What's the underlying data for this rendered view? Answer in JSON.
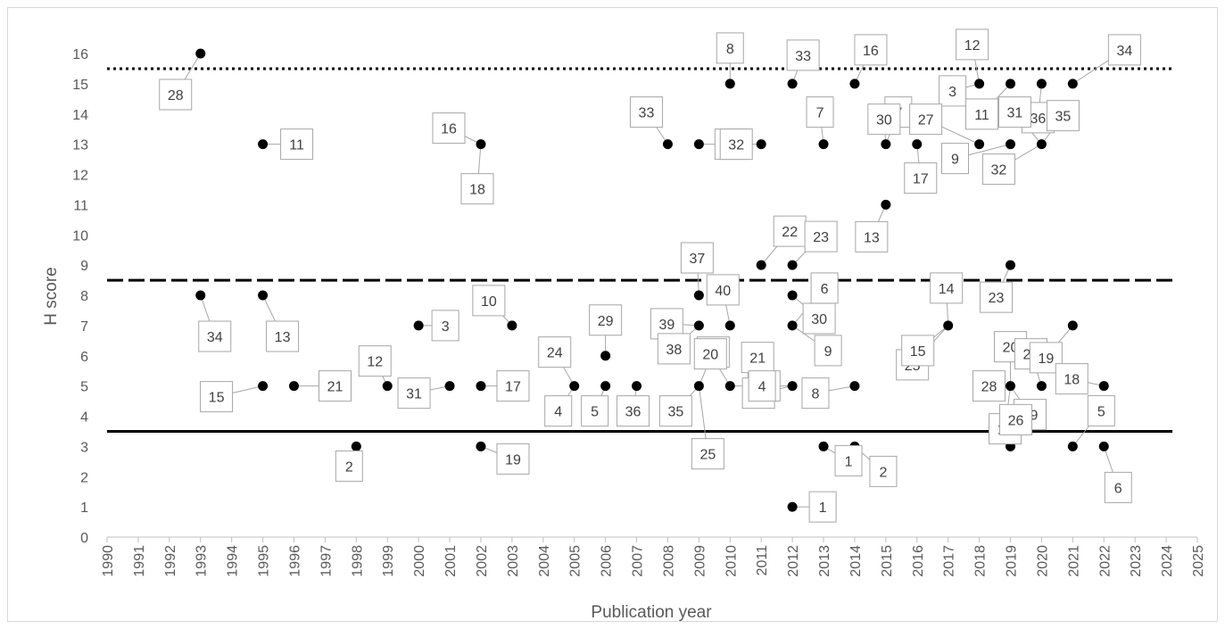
{
  "chart_data": {
    "type": "scatter",
    "title": "",
    "xlabel": "Publication year",
    "ylabel": "H score",
    "xlim": [
      1990,
      2025
    ],
    "ylim": [
      0,
      16
    ],
    "x_ticks": [
      "1990",
      "1991",
      "1992",
      "1993",
      "1994",
      "1995",
      "1996",
      "1997",
      "1998",
      "1999",
      "2000",
      "2001",
      "2002",
      "2003",
      "2004",
      "2005",
      "2006",
      "2007",
      "2008",
      "2009",
      "2010",
      "2011",
      "2012",
      "2013",
      "2014",
      "2015",
      "2016",
      "2017",
      "2018",
      "2019",
      "2020",
      "2021",
      "2022",
      "2023",
      "2024",
      "2025"
    ],
    "y_ticks": [
      "0",
      "1",
      "2",
      "3",
      "4",
      "5",
      "6",
      "7",
      "8",
      "9",
      "10",
      "11",
      "12",
      "13",
      "14",
      "15",
      "16"
    ],
    "grid": false,
    "legend": "none",
    "marker_color": "#000000",
    "reference_lines": [
      {
        "y": 15.5,
        "style": "dotted",
        "color": "#000000"
      },
      {
        "y": 8.5,
        "style": "dashed",
        "color": "#000000"
      },
      {
        "y": 3.5,
        "style": "solid",
        "color": "#000000"
      }
    ],
    "points": [
      {
        "x": 1993,
        "y": 16
      },
      {
        "x": 1993,
        "y": 8
      },
      {
        "x": 1995,
        "y": 13
      },
      {
        "x": 1995,
        "y": 8
      },
      {
        "x": 1995,
        "y": 5
      },
      {
        "x": 1996,
        "y": 5
      },
      {
        "x": 1998,
        "y": 3
      },
      {
        "x": 1999,
        "y": 5
      },
      {
        "x": 2000,
        "y": 7
      },
      {
        "x": 2001,
        "y": 5
      },
      {
        "x": 2002,
        "y": 13
      },
      {
        "x": 2002,
        "y": 5
      },
      {
        "x": 2002,
        "y": 3
      },
      {
        "x": 2003,
        "y": 7
      },
      {
        "x": 2005,
        "y": 5
      },
      {
        "x": 2006,
        "y": 6
      },
      {
        "x": 2006,
        "y": 5
      },
      {
        "x": 2007,
        "y": 5
      },
      {
        "x": 2008,
        "y": 13
      },
      {
        "x": 2009,
        "y": 13
      },
      {
        "x": 2009,
        "y": 8
      },
      {
        "x": 2009,
        "y": 7
      },
      {
        "x": 2009,
        "y": 5
      },
      {
        "x": 2010,
        "y": 15
      },
      {
        "x": 2010,
        "y": 7
      },
      {
        "x": 2010,
        "y": 5
      },
      {
        "x": 2011,
        "y": 13
      },
      {
        "x": 2011,
        "y": 9
      },
      {
        "x": 2011,
        "y": 5
      },
      {
        "x": 2012,
        "y": 15
      },
      {
        "x": 2012,
        "y": 9
      },
      {
        "x": 2012,
        "y": 8
      },
      {
        "x": 2012,
        "y": 7
      },
      {
        "x": 2012,
        "y": 5
      },
      {
        "x": 2012,
        "y": 1
      },
      {
        "x": 2013,
        "y": 13
      },
      {
        "x": 2013,
        "y": 3
      },
      {
        "x": 2014,
        "y": 15
      },
      {
        "x": 2014,
        "y": 5
      },
      {
        "x": 2014,
        "y": 3
      },
      {
        "x": 2015,
        "y": 13
      },
      {
        "x": 2015,
        "y": 11
      },
      {
        "x": 2016,
        "y": 13
      },
      {
        "x": 2017,
        "y": 7
      },
      {
        "x": 2018,
        "y": 15
      },
      {
        "x": 2018,
        "y": 13
      },
      {
        "x": 2019,
        "y": 15
      },
      {
        "x": 2019,
        "y": 13
      },
      {
        "x": 2019,
        "y": 9
      },
      {
        "x": 2019,
        "y": 5
      },
      {
        "x": 2019,
        "y": 3
      },
      {
        "x": 2020,
        "y": 15
      },
      {
        "x": 2020,
        "y": 13
      },
      {
        "x": 2020,
        "y": 5
      },
      {
        "x": 2021,
        "y": 15
      },
      {
        "x": 2021,
        "y": 7
      },
      {
        "x": 2021,
        "y": 3
      },
      {
        "x": 2022,
        "y": 5
      },
      {
        "x": 2022,
        "y": 3
      }
    ],
    "annotations": [
      {
        "text": "28",
        "x": 1993,
        "y": 16
      },
      {
        "text": "34",
        "x": 1993,
        "y": 8
      },
      {
        "text": "11",
        "x": 1995,
        "y": 13
      },
      {
        "text": "13",
        "x": 1995,
        "y": 8
      },
      {
        "text": "15",
        "x": 1995,
        "y": 5
      },
      {
        "text": "21",
        "x": 1996,
        "y": 5
      },
      {
        "text": "2",
        "x": 1998,
        "y": 3
      },
      {
        "text": "12",
        "x": 1999,
        "y": 5
      },
      {
        "text": "3",
        "x": 2000,
        "y": 7
      },
      {
        "text": "31",
        "x": 2001,
        "y": 5
      },
      {
        "text": "16",
        "x": 2002,
        "y": 13
      },
      {
        "text": "18",
        "x": 2002,
        "y": 13
      },
      {
        "text": "17",
        "x": 2002,
        "y": 5
      },
      {
        "text": "19",
        "x": 2002,
        "y": 3
      },
      {
        "text": "10",
        "x": 2003,
        "y": 7
      },
      {
        "text": "24",
        "x": 2005,
        "y": 5
      },
      {
        "text": "4",
        "x": 2005,
        "y": 5
      },
      {
        "text": "29",
        "x": 2006,
        "y": 6
      },
      {
        "text": "5",
        "x": 2006,
        "y": 5
      },
      {
        "text": "36",
        "x": 2007,
        "y": 5
      },
      {
        "text": "33",
        "x": 2008,
        "y": 13
      },
      {
        "text": "22",
        "x": 2009,
        "y": 13
      },
      {
        "text": "37",
        "x": 2009,
        "y": 8
      },
      {
        "text": "39",
        "x": 2009,
        "y": 7
      },
      {
        "text": "38",
        "x": 2009,
        "y": 7
      },
      {
        "text": "26",
        "x": 2009,
        "y": 5
      },
      {
        "text": "35",
        "x": 2009,
        "y": 5
      },
      {
        "text": "25",
        "x": 2009,
        "y": 5
      },
      {
        "text": "8",
        "x": 2010,
        "y": 15
      },
      {
        "text": "40",
        "x": 2010,
        "y": 7
      },
      {
        "text": "14",
        "x": 2010,
        "y": 5
      },
      {
        "text": "20",
        "x": 2010,
        "y": 5
      },
      {
        "text": "32",
        "x": 2011,
        "y": 13
      },
      {
        "text": "22",
        "x": 2011,
        "y": 9
      },
      {
        "text": "21",
        "x": 2011,
        "y": 5
      },
      {
        "text": "33",
        "x": 2012,
        "y": 15
      },
      {
        "text": "23",
        "x": 2012,
        "y": 9
      },
      {
        "text": "30",
        "x": 2012,
        "y": 8
      },
      {
        "text": "6",
        "x": 2012,
        "y": 7
      },
      {
        "text": "9",
        "x": 2012,
        "y": 7
      },
      {
        "text": "27",
        "x": 2012,
        "y": 5
      },
      {
        "text": "4",
        "x": 2012,
        "y": 5
      },
      {
        "text": "1",
        "x": 2012,
        "y": 1
      },
      {
        "text": "7",
        "x": 2013,
        "y": 13
      },
      {
        "text": "1",
        "x": 2013,
        "y": 3
      },
      {
        "text": "16",
        "x": 2014,
        "y": 15
      },
      {
        "text": "8",
        "x": 2014,
        "y": 5
      },
      {
        "text": "2",
        "x": 2014,
        "y": 3
      },
      {
        "text": "7",
        "x": 2015,
        "y": 13
      },
      {
        "text": "30",
        "x": 2015,
        "y": 13
      },
      {
        "text": "13",
        "x": 2015,
        "y": 11
      },
      {
        "text": "17",
        "x": 2016,
        "y": 13
      },
      {
        "text": "25",
        "x": 2017,
        "y": 7
      },
      {
        "text": "14",
        "x": 2017,
        "y": 7
      },
      {
        "text": "15",
        "x": 2017,
        "y": 7
      },
      {
        "text": "12",
        "x": 2018,
        "y": 15
      },
      {
        "text": "3",
        "x": 2018,
        "y": 15
      },
      {
        "text": "27",
        "x": 2018,
        "y": 13
      },
      {
        "text": "11",
        "x": 2019,
        "y": 15
      },
      {
        "text": "9",
        "x": 2019,
        "y": 13
      },
      {
        "text": "23",
        "x": 2019,
        "y": 9
      },
      {
        "text": "29",
        "x": 2019,
        "y": 5
      },
      {
        "text": "28",
        "x": 2019,
        "y": 5
      },
      {
        "text": "20",
        "x": 2019,
        "y": 5
      },
      {
        "text": "10",
        "x": 2019,
        "y": 5
      },
      {
        "text": "26",
        "x": 2019,
        "y": 3
      },
      {
        "text": "36",
        "x": 2020,
        "y": 15
      },
      {
        "text": "31",
        "x": 2020,
        "y": 13
      },
      {
        "text": "35",
        "x": 2020,
        "y": 13
      },
      {
        "text": "32",
        "x": 2020,
        "y": 13
      },
      {
        "text": "24",
        "x": 2020,
        "y": 5
      },
      {
        "text": "34",
        "x": 2021,
        "y": 15
      },
      {
        "text": "19",
        "x": 2021,
        "y": 7
      },
      {
        "text": "5",
        "x": 2021,
        "y": 3
      },
      {
        "text": "18",
        "x": 2022,
        "y": 5
      },
      {
        "text": "6",
        "x": 2022,
        "y": 3
      }
    ]
  }
}
